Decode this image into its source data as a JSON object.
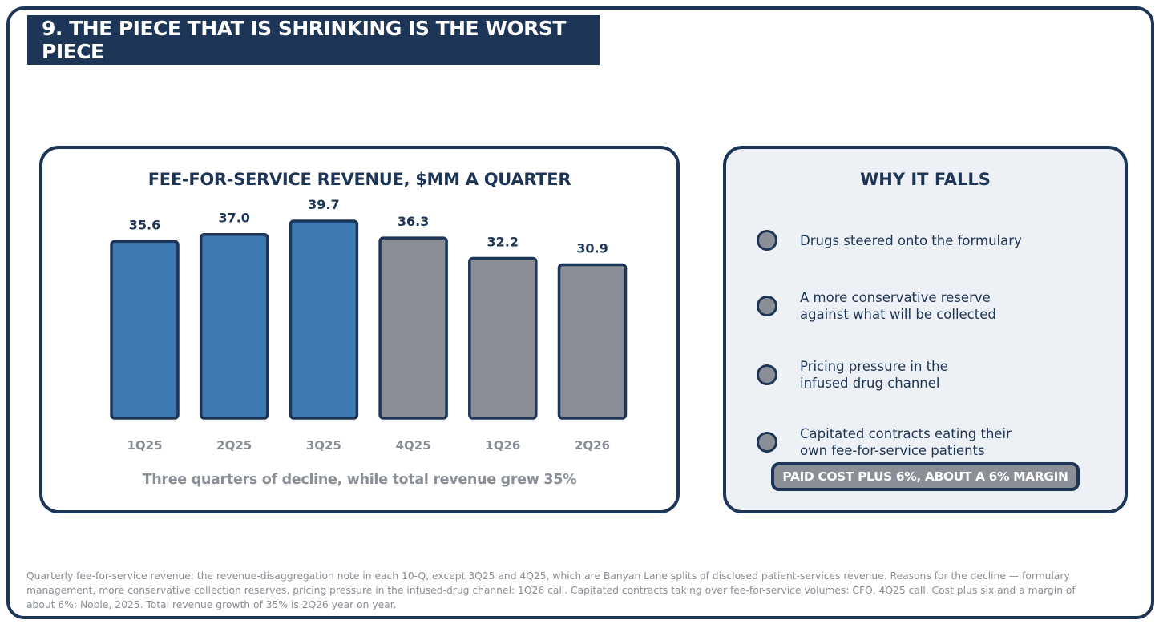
{
  "slide": {
    "title": "9.  THE PIECE THAT IS SHRINKING IS THE WORST PIECE"
  },
  "chart_data": {
    "type": "bar",
    "title": "FEE-FOR-SERVICE REVENUE, $MM A QUARTER",
    "categories": [
      "1Q25",
      "2Q25",
      "3Q25",
      "4Q25",
      "1Q26",
      "2Q26"
    ],
    "values": [
      35.6,
      37.0,
      39.7,
      36.3,
      32.2,
      30.9
    ],
    "value_labels": [
      "35.6",
      "37.0",
      "39.7",
      "36.3",
      "32.2",
      "30.9"
    ],
    "bar_colors": [
      "#3d7ab3",
      "#3d7ab3",
      "#3d7ab3",
      "#8a8e96",
      "#8a8e96",
      "#8a8e96"
    ],
    "xlabel": "",
    "ylabel": "",
    "ylim": [
      0,
      39.7
    ],
    "grid": false,
    "caption": "Three quarters of decline, while total revenue grew 35%"
  },
  "why": {
    "title": "WHY IT FALLS",
    "reasons": [
      "Drugs steered onto the formulary",
      "A more conservative reserve\nagainst what will be collected",
      "Pricing pressure in the\ninfused drug channel",
      "Capitated contracts eating their\nown fee-for-service patients"
    ],
    "badge": "PAID COST PLUS 6%,  ABOUT A 6% MARGIN"
  },
  "footnote": "Quarterly fee-for-service revenue: the revenue-disaggregation note in each 10-Q, except 3Q25 and 4Q25, which are Banyan Lane splits of disclosed patient-services revenue.  Reasons for the decline — formulary management, more conservative collection reserves, pricing pressure in the infused-drug channel: 1Q26 call.  Capitated contracts taking over fee-for-service volumes: CFO, 4Q25 call.  Cost plus six and a margin of about 6%: Noble, 2025.  Total revenue growth of 35% is 2Q26 year on year.",
  "colors": {
    "navy": "#1d3557",
    "blue": "#3d7ab3",
    "gray": "#8a8e96",
    "panel": "#edf1f5"
  }
}
